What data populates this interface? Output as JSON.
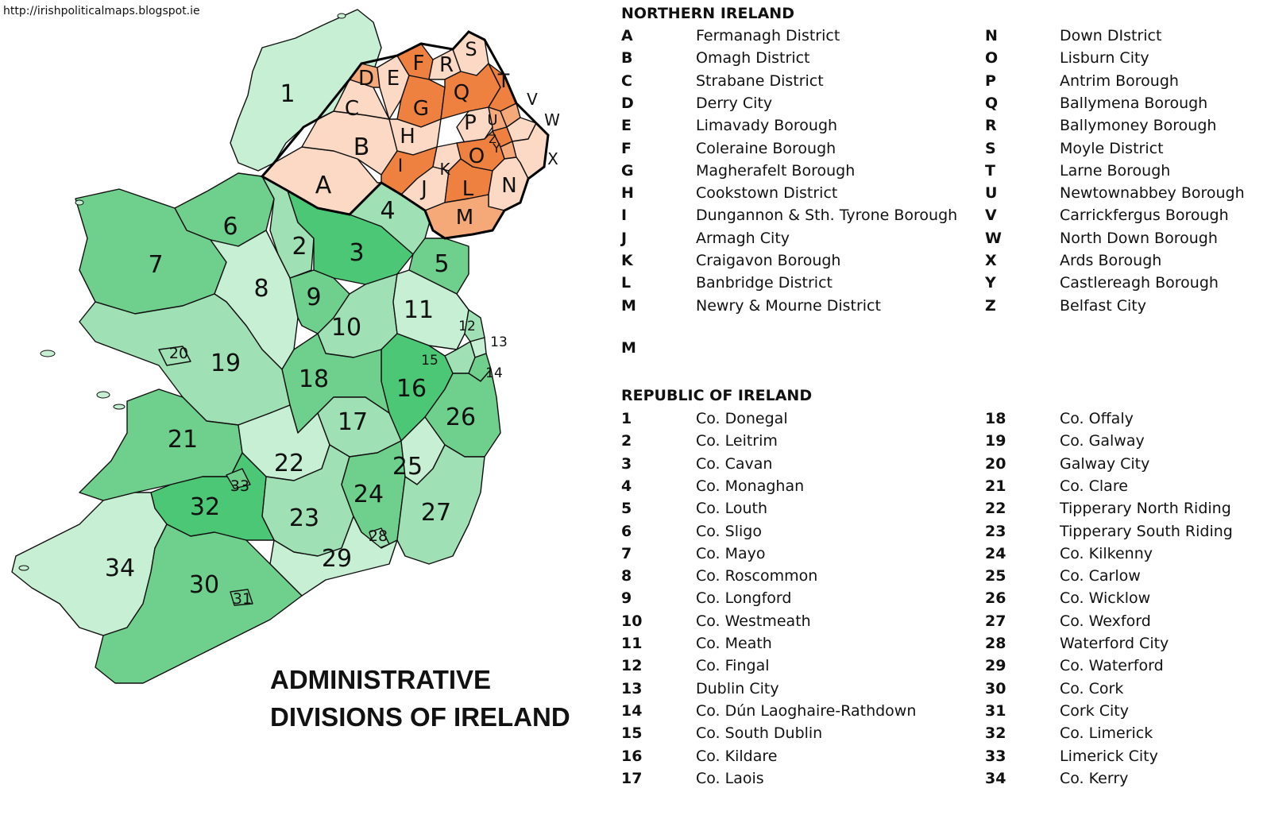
{
  "source_url": "http://irishpoliticalmaps.blogspot.ie",
  "map_title_line1": "ADMINISTRATIVE",
  "map_title_line2": "DIVISIONS OF IRELAND",
  "colors": {
    "ni_light": "#fbd9c4",
    "ni_mid": "#f5a878",
    "ni_dark": "#ee8040",
    "roi_pale": "#c6efd4",
    "roi_light": "#9fe0b4",
    "roi_mid": "#6fcf8c",
    "roi_dark": "#4bc776",
    "border": "#111111"
  },
  "northern_ireland": {
    "heading": "NORTHERN IRELAND",
    "extra_code": "M",
    "left": [
      {
        "code": "A",
        "name": "Fermanagh District"
      },
      {
        "code": "B",
        "name": "Omagh District"
      },
      {
        "code": "C",
        "name": "Strabane District"
      },
      {
        "code": "D",
        "name": "Derry City"
      },
      {
        "code": "E",
        "name": "Limavady Borough"
      },
      {
        "code": "F",
        "name": "Coleraine Borough"
      },
      {
        "code": "G",
        "name": "Magherafelt Borough"
      },
      {
        "code": "H",
        "name": "Cookstown District"
      },
      {
        "code": "I",
        "name": "Dungannon & Sth. Tyrone Borough"
      },
      {
        "code": "J",
        "name": "Armagh City"
      },
      {
        "code": "K",
        "name": "Craigavon Borough"
      },
      {
        "code": "L",
        "name": "Banbridge District"
      },
      {
        "code": "M",
        "name": "Newry & Mourne District"
      }
    ],
    "right": [
      {
        "code": "N",
        "name": "Down DIstrict"
      },
      {
        "code": "O",
        "name": "Lisburn City"
      },
      {
        "code": "P",
        "name": "Antrim Borough"
      },
      {
        "code": "Q",
        "name": "Ballymena Borough"
      },
      {
        "code": "R",
        "name": "Ballymoney Borough"
      },
      {
        "code": "S",
        "name": "Moyle District"
      },
      {
        "code": "T",
        "name": "Larne Borough"
      },
      {
        "code": "U",
        "name": "Newtownabbey Borough"
      },
      {
        "code": "V",
        "name": "Carrickfergus Borough"
      },
      {
        "code": "W",
        "name": "North Down Borough"
      },
      {
        "code": "X",
        "name": "Ards Borough"
      },
      {
        "code": "Y",
        "name": "Castlereagh Borough"
      },
      {
        "code": "Z",
        "name": "Belfast City"
      }
    ]
  },
  "republic_of_ireland": {
    "heading": "REPUBLIC OF IRELAND",
    "left": [
      {
        "code": "1",
        "name": "Co. Donegal"
      },
      {
        "code": "2",
        "name": "Co. Leitrim"
      },
      {
        "code": "3",
        "name": "Co. Cavan"
      },
      {
        "code": "4",
        "name": "Co. Monaghan"
      },
      {
        "code": "5",
        "name": "Co. Louth"
      },
      {
        "code": "6",
        "name": "Co. Sligo"
      },
      {
        "code": "7",
        "name": "Co. Mayo"
      },
      {
        "code": "8",
        "name": "Co. Roscommon"
      },
      {
        "code": "9",
        "name": "Co. Longford"
      },
      {
        "code": "10",
        "name": "Co. Westmeath"
      },
      {
        "code": "11",
        "name": "Co. Meath"
      },
      {
        "code": "12",
        "name": "Co. Fingal"
      },
      {
        "code": "13",
        "name": "Dublin City"
      },
      {
        "code": "14",
        "name": "Co. Dún Laoghaire-Rathdown"
      },
      {
        "code": "15",
        "name": "Co. South Dublin"
      },
      {
        "code": "16",
        "name": "Co. Kildare"
      },
      {
        "code": "17",
        "name": "Co. Laois"
      }
    ],
    "right": [
      {
        "code": "18",
        "name": "Co. Offaly"
      },
      {
        "code": "19",
        "name": "Co. Galway"
      },
      {
        "code": "20",
        "name": "Galway City"
      },
      {
        "code": "21",
        "name": "Co. Clare"
      },
      {
        "code": "22",
        "name": "Tipperary North Riding"
      },
      {
        "code": "23",
        "name": "Tipperary South Riding"
      },
      {
        "code": "24",
        "name": "Co. Kilkenny"
      },
      {
        "code": "25",
        "name": "Co. Carlow"
      },
      {
        "code": "26",
        "name": "Co. Wicklow"
      },
      {
        "code": "27",
        "name": "Co. Wexford"
      },
      {
        "code": "28",
        "name": "Waterford City"
      },
      {
        "code": "29",
        "name": "Co. Waterford"
      },
      {
        "code": "30",
        "name": "Co. Cork"
      },
      {
        "code": "31",
        "name": "Cork City"
      },
      {
        "code": "32",
        "name": "Co. Limerick"
      },
      {
        "code": "33",
        "name": "Limerick City"
      },
      {
        "code": "34",
        "name": "Co. Kerry"
      }
    ]
  },
  "map_regions": [
    {
      "label": "1",
      "tone": "roi_pale"
    },
    {
      "label": "2",
      "tone": "roi_light"
    },
    {
      "label": "3",
      "tone": "roi_dark"
    },
    {
      "label": "4",
      "tone": "roi_light"
    },
    {
      "label": "5",
      "tone": "roi_mid"
    },
    {
      "label": "6",
      "tone": "roi_mid"
    },
    {
      "label": "7",
      "tone": "roi_mid"
    },
    {
      "label": "8",
      "tone": "roi_pale"
    },
    {
      "label": "9",
      "tone": "roi_mid"
    },
    {
      "label": "10",
      "tone": "roi_light"
    },
    {
      "label": "11",
      "tone": "roi_pale"
    },
    {
      "label": "12",
      "tone": "roi_light"
    },
    {
      "label": "13",
      "tone": "roi_pale"
    },
    {
      "label": "14",
      "tone": "roi_mid"
    },
    {
      "label": "15",
      "tone": "roi_light"
    },
    {
      "label": "16",
      "tone": "roi_dark"
    },
    {
      "label": "17",
      "tone": "roi_light"
    },
    {
      "label": "18",
      "tone": "roi_mid"
    },
    {
      "label": "19",
      "tone": "roi_light"
    },
    {
      "label": "20",
      "tone": "roi_light"
    },
    {
      "label": "21",
      "tone": "roi_mid"
    },
    {
      "label": "22",
      "tone": "roi_pale"
    },
    {
      "label": "23",
      "tone": "roi_light"
    },
    {
      "label": "24",
      "tone": "roi_mid"
    },
    {
      "label": "25",
      "tone": "roi_pale"
    },
    {
      "label": "26",
      "tone": "roi_mid"
    },
    {
      "label": "27",
      "tone": "roi_light"
    },
    {
      "label": "28",
      "tone": "roi_light"
    },
    {
      "label": "29",
      "tone": "roi_pale"
    },
    {
      "label": "30",
      "tone": "roi_mid"
    },
    {
      "label": "31",
      "tone": "roi_mid"
    },
    {
      "label": "32",
      "tone": "roi_dark"
    },
    {
      "label": "33",
      "tone": "roi_mid"
    },
    {
      "label": "34",
      "tone": "roi_pale"
    },
    {
      "label": "A",
      "tone": "ni_light"
    },
    {
      "label": "B",
      "tone": "ni_light"
    },
    {
      "label": "C",
      "tone": "ni_light"
    },
    {
      "label": "D",
      "tone": "ni_mid"
    },
    {
      "label": "E",
      "tone": "ni_light"
    },
    {
      "label": "F",
      "tone": "ni_dark"
    },
    {
      "label": "G",
      "tone": "ni_dark"
    },
    {
      "label": "H",
      "tone": "ni_light"
    },
    {
      "label": "I",
      "tone": "ni_dark"
    },
    {
      "label": "J",
      "tone": "ni_light"
    },
    {
      "label": "K",
      "tone": "ni_light"
    },
    {
      "label": "L",
      "tone": "ni_dark"
    },
    {
      "label": "M",
      "tone": "ni_mid"
    },
    {
      "label": "N",
      "tone": "ni_light"
    },
    {
      "label": "O",
      "tone": "ni_dark"
    },
    {
      "label": "P",
      "tone": "ni_light"
    },
    {
      "label": "Q",
      "tone": "ni_dark"
    },
    {
      "label": "R",
      "tone": "ni_light"
    },
    {
      "label": "S",
      "tone": "ni_light"
    },
    {
      "label": "T",
      "tone": "ni_dark"
    },
    {
      "label": "U",
      "tone": "ni_mid"
    },
    {
      "label": "V",
      "tone": "ni_mid"
    },
    {
      "label": "W",
      "tone": "ni_light"
    },
    {
      "label": "X",
      "tone": "ni_light"
    },
    {
      "label": "Y",
      "tone": "ni_mid"
    },
    {
      "label": "Z",
      "tone": "ni_dark"
    }
  ]
}
